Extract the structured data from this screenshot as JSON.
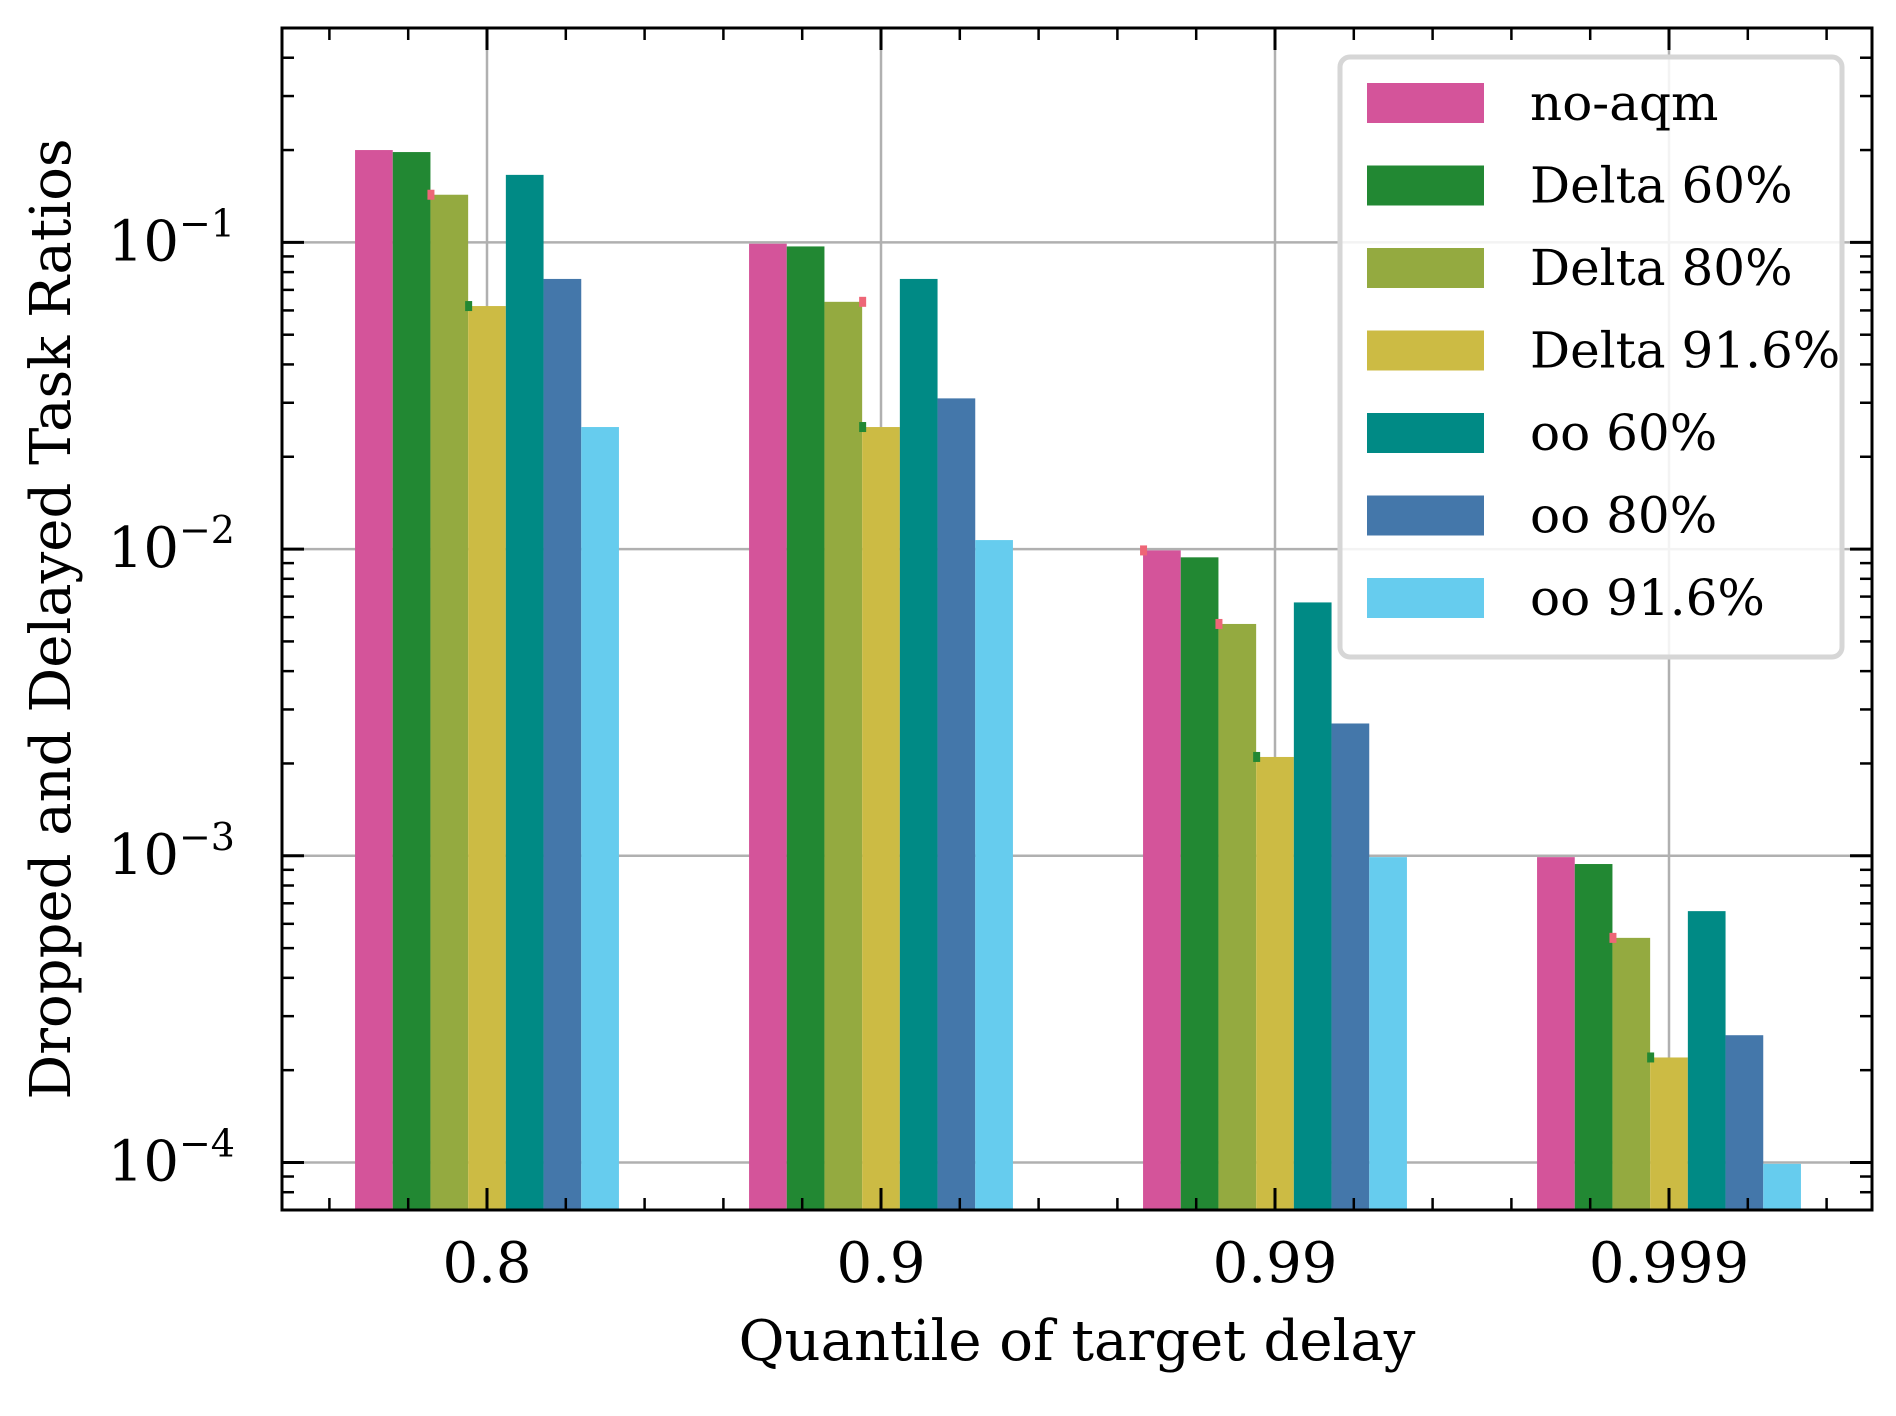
{
  "chart_data": {
    "type": "bar",
    "title": "",
    "xlabel": "Quantile of target delay",
    "ylabel": "Dropped and Delayed Task Ratios",
    "yscale": "log",
    "ylim": [
      7e-05,
      0.5
    ],
    "grid": true,
    "legend_position": "top-right",
    "categories": [
      "0.8",
      "0.9",
      "0.99",
      "0.999"
    ],
    "y_ticks": [
      {
        "value": 0.1,
        "base": "10",
        "exp": "−1"
      },
      {
        "value": 0.01,
        "base": "10",
        "exp": "−2"
      },
      {
        "value": 0.001,
        "base": "10",
        "exp": "−3"
      },
      {
        "value": 0.0001,
        "base": "10",
        "exp": "−4"
      }
    ],
    "series": [
      {
        "name": "no-aqm",
        "color": "#d4549a",
        "values": [
          0.2,
          0.099,
          0.0099,
          0.00099
        ]
      },
      {
        "name": "Delta 60%",
        "color": "#228833",
        "values": [
          0.197,
          0.097,
          0.0094,
          0.00094
        ]
      },
      {
        "name": "Delta 80%",
        "color": "#94aa40",
        "values": [
          0.143,
          0.064,
          0.0057,
          0.00054
        ]
      },
      {
        "name": "Delta 91.6%",
        "color": "#ccbb44",
        "values": [
          0.062,
          0.025,
          0.0021,
          0.00022
        ]
      },
      {
        "name": "oo 60%",
        "color": "#008a85",
        "values": [
          0.166,
          0.076,
          0.0067,
          0.00066
        ]
      },
      {
        "name": "oo 80%",
        "color": "#4477aa",
        "values": [
          0.076,
          0.031,
          0.0027,
          0.00026
        ]
      },
      {
        "name": "oo 91.6%",
        "color": "#66ccee",
        "values": [
          0.025,
          0.0107,
          0.00099,
          9.9e-05
        ]
      }
    ],
    "error_markers": [
      {
        "series": 2,
        "category": 0,
        "value": 0.143,
        "color": "#ee6677"
      },
      {
        "series": 3,
        "category": 0,
        "value": 0.062,
        "color": "#228833"
      },
      {
        "series": 3,
        "category": 1,
        "value": 0.064,
        "color": "#ee6677"
      },
      {
        "series": 3,
        "category": 1,
        "value": 0.025,
        "color": "#228833"
      },
      {
        "series": 0,
        "category": 2,
        "value": 0.0099,
        "color": "#ee6677"
      },
      {
        "series": 2,
        "category": 2,
        "value": 0.0057,
        "color": "#ee6677"
      },
      {
        "series": 3,
        "category": 2,
        "value": 0.0021,
        "color": "#228833"
      },
      {
        "series": 2,
        "category": 3,
        "value": 0.00054,
        "color": "#ee6677"
      },
      {
        "series": 3,
        "category": 3,
        "value": 0.00022,
        "color": "#228833"
      }
    ]
  }
}
